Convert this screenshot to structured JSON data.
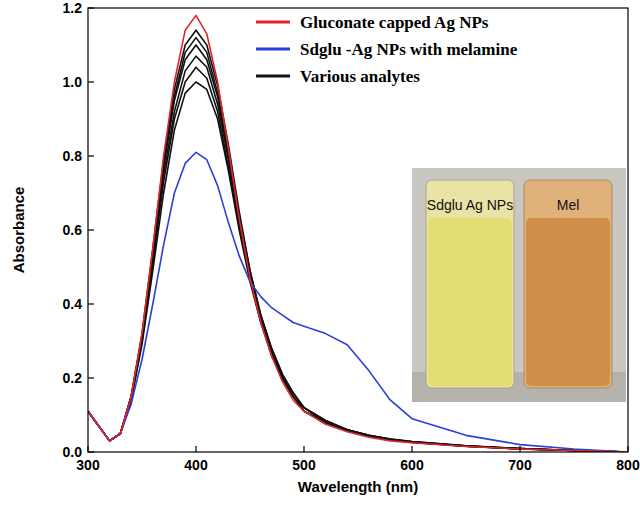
{
  "chart_data": {
    "type": "line",
    "x_label": "Wavelength (nm)",
    "y_label": "Absorbance",
    "x": [
      300,
      310,
      320,
      330,
      340,
      350,
      360,
      370,
      380,
      390,
      400,
      410,
      420,
      430,
      440,
      450,
      460,
      470,
      480,
      490,
      500,
      520,
      540,
      560,
      580,
      600,
      650,
      700,
      750,
      800
    ],
    "xlim": [
      300,
      800
    ],
    "xticks": [
      300,
      400,
      500,
      600,
      700,
      800
    ],
    "ylim": [
      0,
      1.2
    ],
    "yticks": [
      {
        "value": 0,
        "label": "0.0"
      },
      0.2,
      0.4,
      0.6,
      0.8,
      {
        "value": 1,
        "label": "1.0"
      },
      1.2
    ],
    "grid": false,
    "legend": "upper right",
    "annotations": [
      "Sdglu Ag NPs",
      "Mel"
    ],
    "series": [
      {
        "name": "Gluconate capped Ag NPs",
        "color": "#e0262b",
        "values": [
          0.11,
          0.07,
          0.03,
          0.05,
          0.15,
          0.32,
          0.55,
          0.8,
          1.0,
          1.14,
          1.18,
          1.13,
          1.0,
          0.82,
          0.63,
          0.47,
          0.35,
          0.26,
          0.19,
          0.14,
          0.11,
          0.075,
          0.055,
          0.04,
          0.03,
          0.025,
          0.015,
          0.008,
          0.004,
          0
        ]
      },
      {
        "name": "Sdglu -Ag NPs with melamine",
        "color": "#2a3fd6",
        "values": [
          0.11,
          0.07,
          0.03,
          0.05,
          0.13,
          0.25,
          0.4,
          0.56,
          0.7,
          0.78,
          0.81,
          0.79,
          0.72,
          0.62,
          0.53,
          0.46,
          0.42,
          0.39,
          0.37,
          0.35,
          0.34,
          0.32,
          0.29,
          0.22,
          0.14,
          0.09,
          0.045,
          0.02,
          0.008,
          0
        ]
      },
      {
        "name": "Various analytes",
        "color": "#111111",
        "values": [
          0.11,
          0.07,
          0.03,
          0.05,
          0.15,
          0.32,
          0.55,
          0.79,
          0.98,
          1.1,
          1.14,
          1.1,
          0.99,
          0.83,
          0.65,
          0.49,
          0.37,
          0.28,
          0.21,
          0.16,
          0.12,
          0.085,
          0.06,
          0.045,
          0.035,
          0.028,
          0.017,
          0.009,
          0.004,
          0
        ]
      },
      {
        "color": "#111111",
        "values": [
          0.11,
          0.07,
          0.03,
          0.05,
          0.15,
          0.31,
          0.54,
          0.78,
          0.96,
          1.08,
          1.12,
          1.08,
          0.97,
          0.81,
          0.64,
          0.49,
          0.37,
          0.28,
          0.21,
          0.16,
          0.12,
          0.085,
          0.06,
          0.045,
          0.035,
          0.028,
          0.017,
          0.009,
          0.004,
          0
        ]
      },
      {
        "color": "#111111",
        "values": [
          0.11,
          0.07,
          0.03,
          0.05,
          0.15,
          0.31,
          0.53,
          0.77,
          0.95,
          1.06,
          1.1,
          1.06,
          0.96,
          0.8,
          0.63,
          0.48,
          0.36,
          0.27,
          0.2,
          0.15,
          0.12,
          0.08,
          0.06,
          0.045,
          0.034,
          0.027,
          0.016,
          0.009,
          0.004,
          0
        ]
      },
      {
        "color": "#111111",
        "values": [
          0.11,
          0.07,
          0.03,
          0.05,
          0.15,
          0.3,
          0.52,
          0.75,
          0.92,
          1.03,
          1.07,
          1.04,
          0.94,
          0.79,
          0.62,
          0.48,
          0.36,
          0.27,
          0.2,
          0.15,
          0.12,
          0.08,
          0.06,
          0.044,
          0.034,
          0.027,
          0.016,
          0.009,
          0.004,
          0
        ]
      },
      {
        "color": "#111111",
        "values": [
          0.11,
          0.07,
          0.03,
          0.05,
          0.14,
          0.3,
          0.51,
          0.73,
          0.9,
          1.0,
          1.04,
          1.01,
          0.92,
          0.77,
          0.61,
          0.47,
          0.35,
          0.27,
          0.2,
          0.15,
          0.11,
          0.08,
          0.058,
          0.043,
          0.033,
          0.026,
          0.016,
          0.008,
          0.004,
          0
        ]
      },
      {
        "color": "#111111",
        "values": [
          0.11,
          0.07,
          0.03,
          0.05,
          0.14,
          0.29,
          0.49,
          0.7,
          0.87,
          0.97,
          1.0,
          0.98,
          0.9,
          0.76,
          0.6,
          0.46,
          0.35,
          0.26,
          0.2,
          0.15,
          0.11,
          0.08,
          0.058,
          0.043,
          0.033,
          0.026,
          0.016,
          0.008,
          0.004,
          0
        ]
      }
    ]
  }
}
